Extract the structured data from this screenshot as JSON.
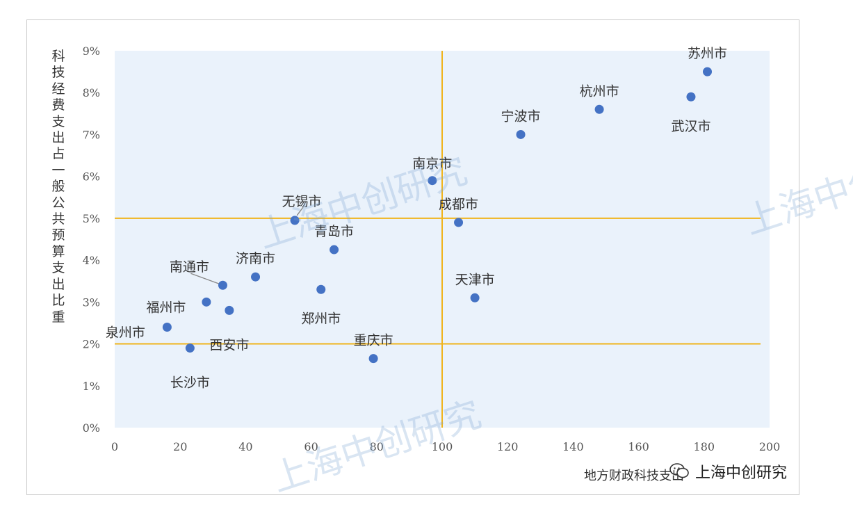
{
  "chart_data": {
    "type": "scatter",
    "ylabel": "科技经费支出占一般公共预算支出比重",
    "xlabel": "地方财政科技支出",
    "xlim": [
      0,
      200
    ],
    "ylim": [
      0,
      0.09
    ],
    "xticks": [
      "0",
      "20",
      "40",
      "60",
      "80",
      "100",
      "120",
      "140",
      "160",
      "180",
      "200"
    ],
    "yticks": [
      "0%",
      "1%",
      "2%",
      "3%",
      "4%",
      "5%",
      "6%",
      "7%",
      "8%",
      "9%"
    ],
    "reference_lines": {
      "x": 100,
      "y": [
        0.05,
        0.02
      ]
    },
    "marker_color": "#4472c4",
    "line_color": "#f0b41c",
    "plot_bg": "#eaf2fb",
    "points": [
      {
        "name": "苏州市",
        "x": 181,
        "y": 0.085
      },
      {
        "name": "武汉市",
        "x": 176,
        "y": 0.079
      },
      {
        "name": "杭州市",
        "x": 148,
        "y": 0.076
      },
      {
        "name": "宁波市",
        "x": 124,
        "y": 0.07
      },
      {
        "name": "南京市",
        "x": 97,
        "y": 0.059
      },
      {
        "name": "成都市",
        "x": 105,
        "y": 0.049
      },
      {
        "name": "无锡市",
        "x": 55,
        "y": 0.0495
      },
      {
        "name": "青岛市",
        "x": 67,
        "y": 0.0425
      },
      {
        "name": "济南市",
        "x": 43,
        "y": 0.036
      },
      {
        "name": "南通市",
        "x": 33,
        "y": 0.034
      },
      {
        "name": "郑州市",
        "x": 63,
        "y": 0.033
      },
      {
        "name": "天津市",
        "x": 110,
        "y": 0.031
      },
      {
        "name": "福州市",
        "x": 28,
        "y": 0.03
      },
      {
        "name": "西安市",
        "x": 35,
        "y": 0.028
      },
      {
        "name": "泉州市",
        "x": 16,
        "y": 0.024
      },
      {
        "name": "长沙市",
        "x": 23,
        "y": 0.019
      },
      {
        "name": "重庆市",
        "x": 79,
        "y": 0.0165
      }
    ]
  },
  "watermark": "上海中创研究",
  "watermark_icon": "wechat-icon"
}
